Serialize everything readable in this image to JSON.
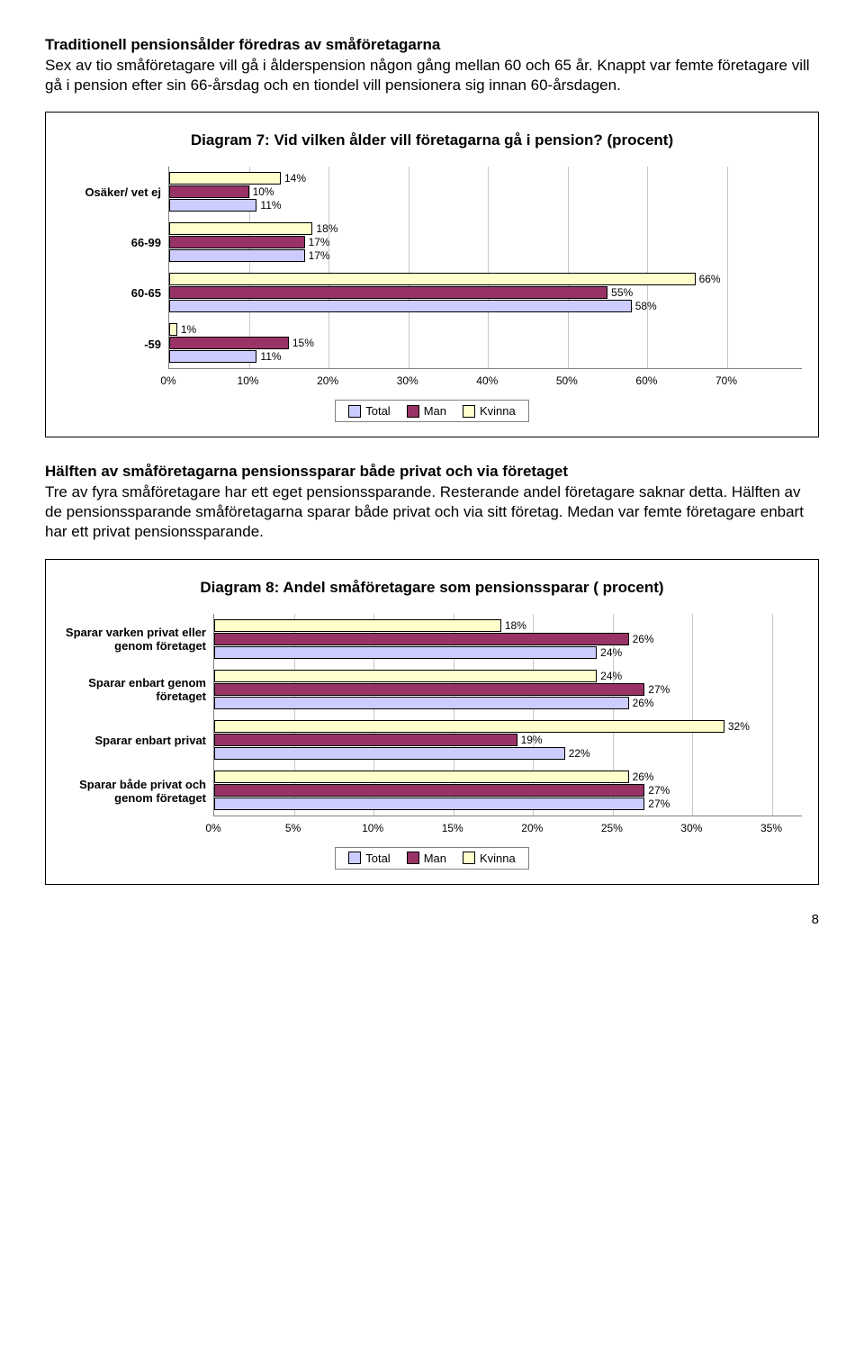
{
  "section1": {
    "heading": "Traditionell pensionsålder föredras av småföretagarna",
    "para": "Sex av tio småföretagare vill gå i ålderspension någon gång mellan 60 och 65 år. Knappt var femte företagare vill gå i pension efter sin 66-årsdag och en tiondel vill pensionera sig innan 60-årsdagen."
  },
  "chart7": {
    "title": "Diagram 7: Vid vilken ålder vill företagarna gå i pension? (procent)",
    "xmax": 70,
    "xticks": [
      "0%",
      "10%",
      "20%",
      "30%",
      "40%",
      "50%",
      "60%",
      "70%"
    ],
    "xtick_positions": [
      0,
      10,
      20,
      30,
      40,
      50,
      60,
      70
    ],
    "colors": {
      "kvinna": "#ffffcc",
      "man": "#993366",
      "total": "#ccccff"
    },
    "categories": [
      {
        "label": "Osäker/ vet ej",
        "bars": [
          {
            "series": "kvinna",
            "value": 14,
            "label": "14%"
          },
          {
            "series": "man",
            "value": 10,
            "label": "10%"
          },
          {
            "series": "total",
            "value": 11,
            "label": "11%"
          }
        ]
      },
      {
        "label": "66-99",
        "bars": [
          {
            "series": "kvinna",
            "value": 18,
            "label": "18%"
          },
          {
            "series": "man",
            "value": 17,
            "label": "17%"
          },
          {
            "series": "total",
            "value": 17,
            "label": "17%"
          }
        ]
      },
      {
        "label": "60-65",
        "bars": [
          {
            "series": "kvinna",
            "value": 66,
            "label": "66%"
          },
          {
            "series": "man",
            "value": 55,
            "label": "55%"
          },
          {
            "series": "total",
            "value": 58,
            "label": "58%"
          }
        ]
      },
      {
        "label": "-59",
        "bars": [
          {
            "series": "kvinna",
            "value": 1,
            "label": "1%"
          },
          {
            "series": "man",
            "value": 15,
            "label": "15%"
          },
          {
            "series": "total",
            "value": 11,
            "label": "11%"
          }
        ]
      }
    ],
    "legend": [
      {
        "series": "total",
        "label": "Total"
      },
      {
        "series": "man",
        "label": "Man"
      },
      {
        "series": "kvinna",
        "label": "Kvinna"
      }
    ]
  },
  "section2": {
    "heading": "Hälften av småföretagarna pensionssparar både privat och via företaget",
    "para": "Tre av fyra småföretagare har ett eget pensionssparande. Resterande andel företagare saknar detta. Hälften av de pensionssparande småföretagarna sparar både privat och via sitt företag. Medan var femte företagare enbart har ett privat pensionssparande."
  },
  "chart8": {
    "title": "Diagram 8: Andel småföretagare som pensionssparar ( procent)",
    "xmax": 35,
    "xticks": [
      "0%",
      "5%",
      "10%",
      "15%",
      "20%",
      "25%",
      "30%",
      "35%"
    ],
    "xtick_positions": [
      0,
      5,
      10,
      15,
      20,
      25,
      30,
      35
    ],
    "colors": {
      "kvinna": "#ffffcc",
      "man": "#993366",
      "total": "#ccccff"
    },
    "categories": [
      {
        "label": "Sparar varken privat eller genom företaget",
        "bars": [
          {
            "series": "kvinna",
            "value": 18,
            "label": "18%"
          },
          {
            "series": "man",
            "value": 26,
            "label": "26%"
          },
          {
            "series": "total",
            "value": 24,
            "label": "24%"
          }
        ]
      },
      {
        "label": "Sparar enbart genom företaget",
        "bars": [
          {
            "series": "kvinna",
            "value": 24,
            "label": "24%"
          },
          {
            "series": "man",
            "value": 27,
            "label": "27%"
          },
          {
            "series": "total",
            "value": 26,
            "label": "26%"
          }
        ]
      },
      {
        "label": "Sparar enbart privat",
        "bars": [
          {
            "series": "kvinna",
            "value": 32,
            "label": "32%"
          },
          {
            "series": "man",
            "value": 19,
            "label": "19%"
          },
          {
            "series": "total",
            "value": 22,
            "label": "22%"
          }
        ]
      },
      {
        "label": "Sparar både privat och genom företaget",
        "bars": [
          {
            "series": "kvinna",
            "value": 26,
            "label": "26%"
          },
          {
            "series": "man",
            "value": 27,
            "label": "27%"
          },
          {
            "series": "total",
            "value": 27,
            "label": "27%"
          }
        ]
      }
    ],
    "legend": [
      {
        "series": "total",
        "label": "Total"
      },
      {
        "series": "man",
        "label": "Man"
      },
      {
        "series": "kvinna",
        "label": "Kvinna"
      }
    ]
  },
  "pageNumber": "8"
}
